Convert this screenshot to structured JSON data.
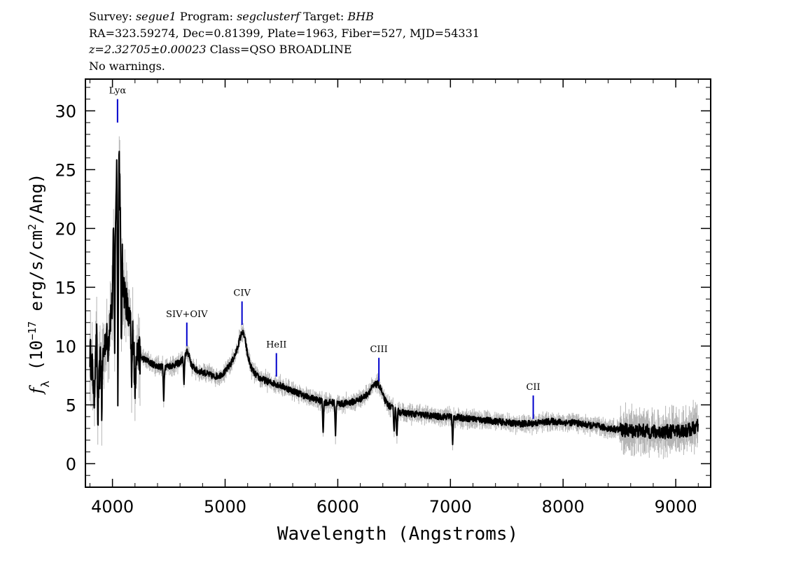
{
  "header": {
    "line1": {
      "survey_label": "Survey:",
      "survey": "segue1",
      "program_label": "Program:",
      "program": "segclusterf",
      "target_label": "Target:",
      "target": "BHB"
    },
    "line2": "RA=323.59274, Dec=0.81399, Plate=1963, Fiber=527, MJD=54331",
    "line3": {
      "redshift": "z=2.32705±0.00023",
      "class": "Class=QSO BROADLINE"
    },
    "line4": "No warnings."
  },
  "chart_data": {
    "type": "line",
    "xlabel": "Wavelength (Angstroms)",
    "ylabel": "fλ (10⁻¹⁷ erg/s/cm²/Ang)",
    "xlim": [
      3760,
      9310
    ],
    "ylim": [
      -2,
      32.7
    ],
    "x_ticks": [
      4000,
      5000,
      6000,
      7000,
      8000,
      9000
    ],
    "y_ticks": [
      0,
      5,
      10,
      15,
      20,
      25,
      30
    ],
    "grid": false,
    "colors": {
      "spectrum": "#000000",
      "error": "#b5b5b5",
      "line_marker": "#0000cc"
    },
    "series": [
      {
        "role": "flux",
        "x": [
          3800,
          3820,
          3840,
          3860,
          3880,
          3900,
          3920,
          3940,
          3960,
          3980,
          4000,
          4010,
          4020,
          4030,
          4040,
          4050,
          4060,
          4070,
          4080,
          4090,
          4100,
          4120,
          4140,
          4160,
          4180,
          4200,
          4230,
          4260,
          4300,
          4350,
          4400,
          4450,
          4500,
          4550,
          4600,
          4640,
          4660,
          4680,
          4700,
          4750,
          4800,
          4850,
          4900,
          4950,
          5000,
          5050,
          5100,
          5130,
          5150,
          5165,
          5180,
          5200,
          5230,
          5260,
          5300,
          5350,
          5400,
          5450,
          5500,
          5550,
          5600,
          5650,
          5700,
          5750,
          5800,
          5850,
          5900,
          5950,
          6000,
          6050,
          6100,
          6150,
          6200,
          6250,
          6300,
          6330,
          6360,
          6380,
          6400,
          6430,
          6460,
          6500,
          6550,
          6600,
          6700,
          6800,
          6900,
          7000,
          7100,
          7200,
          7300,
          7400,
          7500,
          7600,
          7700,
          7800,
          7900,
          8000,
          8100,
          8200,
          8300,
          8400,
          8500,
          8600,
          8700,
          8800,
          8900,
          9000,
          9100,
          9150,
          9200
        ],
        "y": [
          9.5,
          8.0,
          7.0,
          10.5,
          6.5,
          10.0,
          9.0,
          11.0,
          10.0,
          12.5,
          13.5,
          20.0,
          23.5,
          22.0,
          26.5,
          27.5,
          26.0,
          22.0,
          19.0,
          16.5,
          15.0,
          14.0,
          12.5,
          11.5,
          11.0,
          10.0,
          9.3,
          9.0,
          8.8,
          8.5,
          8.3,
          8.2,
          8.3,
          8.4,
          8.6,
          9.2,
          9.5,
          9.3,
          8.4,
          7.9,
          7.8,
          7.6,
          7.4,
          7.5,
          7.8,
          8.5,
          9.5,
          10.6,
          11.2,
          11.0,
          10.4,
          9.2,
          8.2,
          7.7,
          7.3,
          7.1,
          6.9,
          6.8,
          6.6,
          6.4,
          6.2,
          6.0,
          5.8,
          5.6,
          5.5,
          5.3,
          5.2,
          5.2,
          5.1,
          5.1,
          5.2,
          5.3,
          5.5,
          5.8,
          6.4,
          6.7,
          6.8,
          6.4,
          5.8,
          5.2,
          4.9,
          4.6,
          4.4,
          4.3,
          4.2,
          4.1,
          4.0,
          4.0,
          3.9,
          3.8,
          3.7,
          3.6,
          3.5,
          3.4,
          3.4,
          3.5,
          3.6,
          3.5,
          3.5,
          3.3,
          3.2,
          3.0,
          2.9,
          2.8,
          2.8,
          2.7,
          2.7,
          2.8,
          2.8,
          3.0,
          3.2
        ]
      }
    ],
    "absorption_features": [
      {
        "x": 3835,
        "y_min": 5.5
      },
      {
        "x": 3870,
        "y_min": 3.3
      },
      {
        "x": 3905,
        "y_min": 4.5
      },
      {
        "x": 4020,
        "y_min": 10.0
      },
      {
        "x": 4048,
        "y_min": 5.2
      },
      {
        "x": 4078,
        "y_min": 9.5
      },
      {
        "x": 4170,
        "y_min": 6.5
      },
      {
        "x": 4200,
        "y_min": 5.2
      },
      {
        "x": 4455,
        "y_min": 5.5
      },
      {
        "x": 4635,
        "y_min": 6.5
      },
      {
        "x": 5870,
        "y_min": 2.7
      },
      {
        "x": 5980,
        "y_min": 2.4
      },
      {
        "x": 6500,
        "y_min": 2.8
      },
      {
        "x": 6525,
        "y_min": 2.2
      },
      {
        "x": 7020,
        "y_min": 1.5
      }
    ],
    "line_markers": [
      {
        "label": "Lyα",
        "x": 4045,
        "y_top": 31.0,
        "y_bottom": 29.0
      },
      {
        "label": "SIV+OIV",
        "x": 4660,
        "y_top": 12.0,
        "y_bottom": 10.0
      },
      {
        "label": "CIV",
        "x": 5150,
        "y_top": 13.8,
        "y_bottom": 11.8
      },
      {
        "label": "HeII",
        "x": 5455,
        "y_top": 9.4,
        "y_bottom": 7.4
      },
      {
        "label": "CIII",
        "x": 6365,
        "y_top": 9.0,
        "y_bottom": 7.0
      },
      {
        "label": "CII",
        "x": 7735,
        "y_top": 5.8,
        "y_bottom": 3.8
      }
    ]
  }
}
